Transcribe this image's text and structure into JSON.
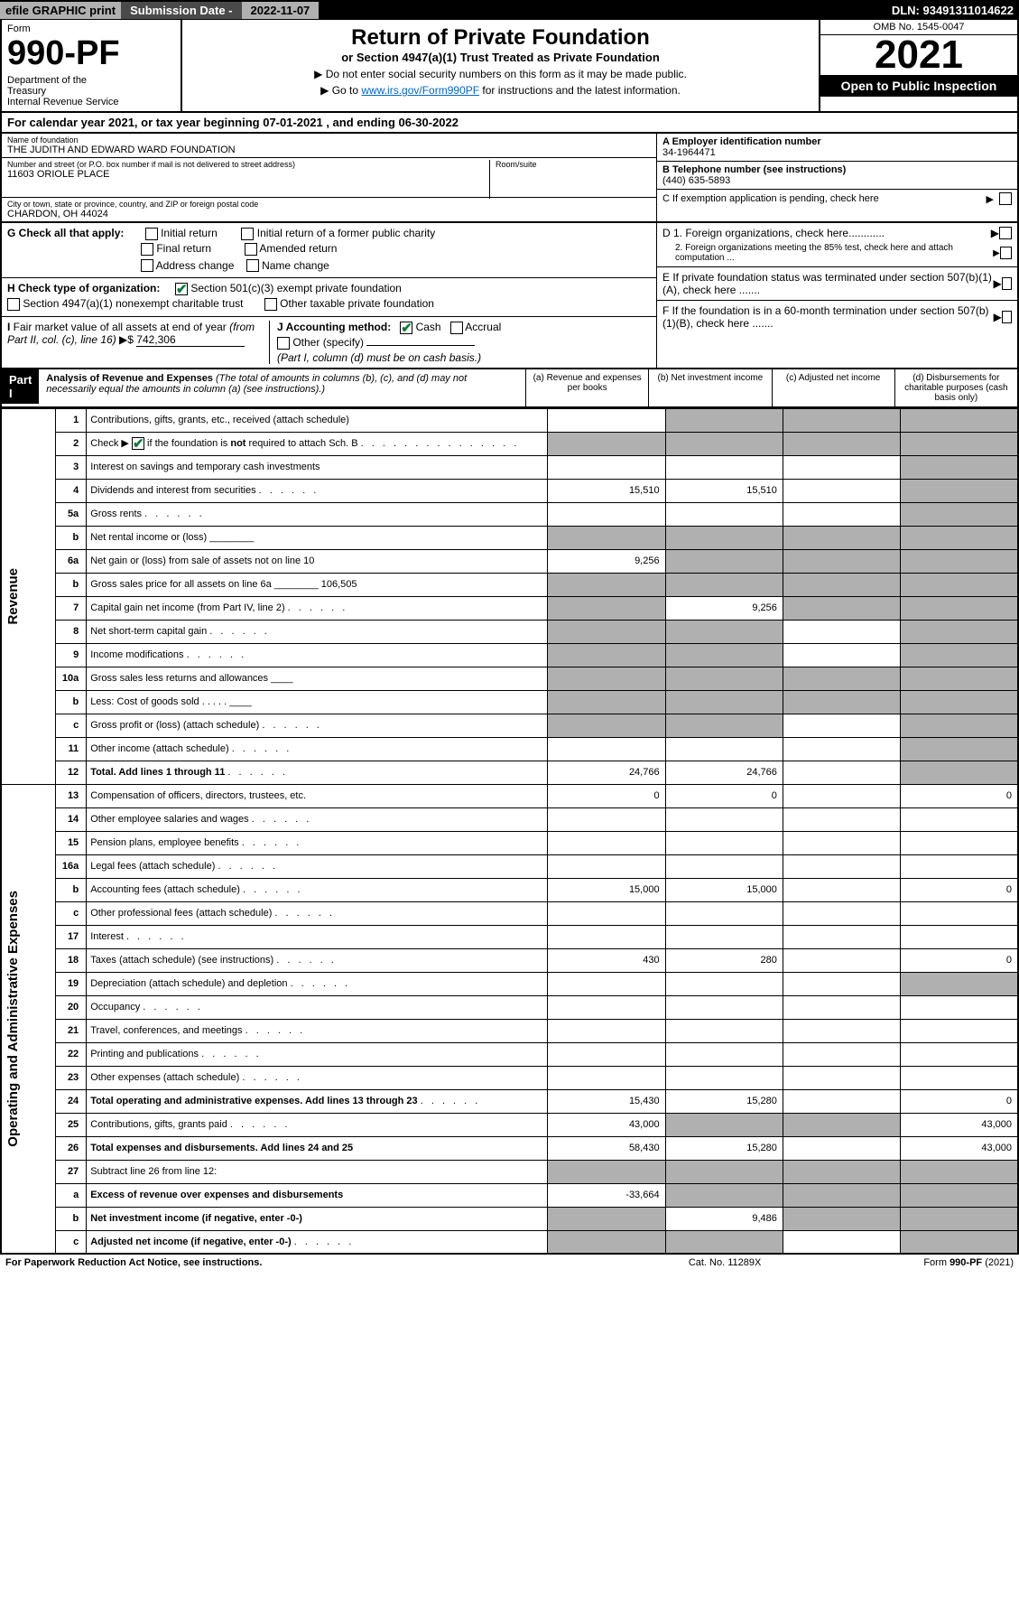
{
  "top": {
    "efile": "efile GRAPHIC print",
    "sub_label": "Submission Date - ",
    "sub_date": "2022-11-07",
    "dln": "DLN: 93491311014622"
  },
  "header": {
    "form_label": "Form",
    "form_no": "990-PF",
    "dept": "Department of the Treasury\nInternal Revenue Service",
    "title": "Return of Private Foundation",
    "sub1": "or Section 4947(a)(1) Trust Treated as Private Foundation",
    "sub2a": "▶ Do not enter social security numbers on this form as it may be made public.",
    "sub2b": "▶ Go to ",
    "link": "www.irs.gov/Form990PF",
    "sub2c": " for instructions and the latest information.",
    "omb": "OMB No. 1545-0047",
    "year": "2021",
    "open": "Open to Public Inspection"
  },
  "cal": "For calendar year 2021, or tax year beginning 07-01-2021          , and ending 06-30-2022",
  "info": {
    "name_label": "Name of foundation",
    "name": "THE JUDITH AND EDWARD WARD FOUNDATION",
    "addr_label": "Number and street (or P.O. box number if mail is not delivered to street address)",
    "addr": "11603 ORIOLE PLACE",
    "room_label": "Room/suite",
    "city_label": "City or town, state or province, country, and ZIP or foreign postal code",
    "city": "CHARDON, OH  44024",
    "a_label": "A Employer identification number",
    "a_val": "34-1964471",
    "b_label": "B Telephone number (see instructions)",
    "b_val": "(440) 635-5893",
    "c_label": "C If exemption application is pending, check here"
  },
  "checks": {
    "g_label": "G Check all that apply:",
    "g_opts": [
      "Initial return",
      "Initial return of a former public charity",
      "Final return",
      "Amended return",
      "Address change",
      "Name change"
    ],
    "h_label": "H Check type of organization:",
    "h_opt1": "Section 501(c)(3) exempt private foundation",
    "h_opt2": "Section 4947(a)(1) nonexempt charitable trust",
    "h_opt3": "Other taxable private foundation",
    "i_label": "I Fair market value of all assets at end of year (from Part II, col. (c), line 16) ▶$ ",
    "i_val": "742,306",
    "j_label": "J Accounting method:",
    "j_cash": "Cash",
    "j_accrual": "Accrual",
    "j_other": "Other (specify)",
    "j_note": "(Part I, column (d) must be on cash basis.)",
    "d1": "D 1. Foreign organizations, check here............",
    "d2": "2. Foreign organizations meeting the 85% test, check here and attach computation ...",
    "e": "E If private foundation status was terminated under section 507(b)(1)(A), check here .......",
    "f": "F  If the foundation is in a 60-month termination under section 507(b)(1)(B), check here ......."
  },
  "part1": {
    "header": "Part I",
    "title": "Analysis of Revenue and Expenses",
    "note": " (The total of amounts in columns (b), (c), and (d) may not necessarily equal the amounts in column (a) (see instructions).)",
    "col_a": "(a)   Revenue and expenses per books",
    "col_b": "(b)   Net investment income",
    "col_c": "(c)   Adjusted net income",
    "col_d": "(d)   Disbursements for charitable purposes (cash basis only)"
  },
  "sides": {
    "revenue": "Revenue",
    "expenses": "Operating and Administrative Expenses"
  },
  "rows": [
    {
      "n": "1",
      "d": "Contributions, gifts, grants, etc., received (attach schedule)",
      "a": "",
      "b": "shade",
      "c": "shade",
      "dd": "shade"
    },
    {
      "n": "2",
      "d": "Check ▶ ☑ if the foundation is not required to attach Sch. B",
      "a": "shade",
      "b": "shade",
      "c": "shade",
      "dd": "shade",
      "desc_dots": true
    },
    {
      "n": "3",
      "d": "Interest on savings and temporary cash investments",
      "a": "",
      "b": "",
      "c": "",
      "dd": "shade"
    },
    {
      "n": "4",
      "d": "Dividends and interest from securities",
      "a": "15,510",
      "b": "15,510",
      "c": "",
      "dd": "shade",
      "dots": true
    },
    {
      "n": "5a",
      "d": "Gross rents",
      "a": "",
      "b": "",
      "c": "",
      "dd": "shade",
      "dots": true
    },
    {
      "n": "b",
      "d": "Net rental income or (loss) ________",
      "a": "shade",
      "b": "shade",
      "c": "shade",
      "dd": "shade"
    },
    {
      "n": "6a",
      "d": "Net gain or (loss) from sale of assets not on line 10",
      "a": "9,256",
      "b": "shade",
      "c": "shade",
      "dd": "shade"
    },
    {
      "n": "b",
      "d": "Gross sales price for all assets on line 6a ________ 106,505",
      "a": "shade",
      "b": "shade",
      "c": "shade",
      "dd": "shade"
    },
    {
      "n": "7",
      "d": "Capital gain net income (from Part IV, line 2)",
      "a": "shade",
      "b": "9,256",
      "c": "shade",
      "dd": "shade",
      "dots": true
    },
    {
      "n": "8",
      "d": "Net short-term capital gain",
      "a": "shade",
      "b": "shade",
      "c": "",
      "dd": "shade",
      "dots": true
    },
    {
      "n": "9",
      "d": "Income modifications",
      "a": "shade",
      "b": "shade",
      "c": "",
      "dd": "shade",
      "dots": true
    },
    {
      "n": "10a",
      "d": "Gross sales less returns and allowances  ____",
      "a": "shade",
      "b": "shade",
      "c": "shade",
      "dd": "shade"
    },
    {
      "n": "b",
      "d": "Less: Cost of goods sold   . . . . .  ____",
      "a": "shade",
      "b": "shade",
      "c": "shade",
      "dd": "shade"
    },
    {
      "n": "c",
      "d": "Gross profit or (loss) (attach schedule)",
      "a": "shade",
      "b": "shade",
      "c": "",
      "dd": "shade",
      "dots": true
    },
    {
      "n": "11",
      "d": "Other income (attach schedule)",
      "a": "",
      "b": "",
      "c": "",
      "dd": "shade",
      "dots": true
    },
    {
      "n": "12",
      "d": "Total. Add lines 1 through 11",
      "a": "24,766",
      "b": "24,766",
      "c": "",
      "dd": "shade",
      "bold": true,
      "dots": true
    },
    {
      "n": "13",
      "d": "Compensation of officers, directors, trustees, etc.",
      "a": "0",
      "b": "0",
      "c": "",
      "dd": "0"
    },
    {
      "n": "14",
      "d": "Other employee salaries and wages",
      "a": "",
      "b": "",
      "c": "",
      "dd": "",
      "dots": true
    },
    {
      "n": "15",
      "d": "Pension plans, employee benefits",
      "a": "",
      "b": "",
      "c": "",
      "dd": "",
      "dots": true
    },
    {
      "n": "16a",
      "d": "Legal fees (attach schedule)",
      "a": "",
      "b": "",
      "c": "",
      "dd": "",
      "dots": true
    },
    {
      "n": "b",
      "d": "Accounting fees (attach schedule)",
      "a": "15,000",
      "b": "15,000",
      "c": "",
      "dd": "0",
      "dots": true
    },
    {
      "n": "c",
      "d": "Other professional fees (attach schedule)",
      "a": "",
      "b": "",
      "c": "",
      "dd": "",
      "dots": true
    },
    {
      "n": "17",
      "d": "Interest",
      "a": "",
      "b": "",
      "c": "",
      "dd": "",
      "dots": true
    },
    {
      "n": "18",
      "d": "Taxes (attach schedule) (see instructions)",
      "a": "430",
      "b": "280",
      "c": "",
      "dd": "0",
      "dots": true
    },
    {
      "n": "19",
      "d": "Depreciation (attach schedule) and depletion",
      "a": "",
      "b": "",
      "c": "",
      "dd": "shade",
      "dots": true
    },
    {
      "n": "20",
      "d": "Occupancy",
      "a": "",
      "b": "",
      "c": "",
      "dd": "",
      "dots": true
    },
    {
      "n": "21",
      "d": "Travel, conferences, and meetings",
      "a": "",
      "b": "",
      "c": "",
      "dd": "",
      "dots": true
    },
    {
      "n": "22",
      "d": "Printing and publications",
      "a": "",
      "b": "",
      "c": "",
      "dd": "",
      "dots": true
    },
    {
      "n": "23",
      "d": "Other expenses (attach schedule)",
      "a": "",
      "b": "",
      "c": "",
      "dd": "",
      "dots": true
    },
    {
      "n": "24",
      "d": "Total operating and administrative expenses. Add lines 13 through 23",
      "a": "15,430",
      "b": "15,280",
      "c": "",
      "dd": "0",
      "bold": true,
      "dots": true
    },
    {
      "n": "25",
      "d": "Contributions, gifts, grants paid",
      "a": "43,000",
      "b": "shade",
      "c": "shade",
      "dd": "43,000",
      "dots": true
    },
    {
      "n": "26",
      "d": "Total expenses and disbursements. Add lines 24 and 25",
      "a": "58,430",
      "b": "15,280",
      "c": "",
      "dd": "43,000",
      "bold": true
    },
    {
      "n": "27",
      "d": "Subtract line 26 from line 12:",
      "a": "shade",
      "b": "shade",
      "c": "shade",
      "dd": "shade"
    },
    {
      "n": "a",
      "d": "Excess of revenue over expenses and disbursements",
      "a": "-33,664",
      "b": "shade",
      "c": "shade",
      "dd": "shade",
      "bold": true
    },
    {
      "n": "b",
      "d": "Net investment income (if negative, enter -0-)",
      "a": "shade",
      "b": "9,486",
      "c": "shade",
      "dd": "shade",
      "bold": true
    },
    {
      "n": "c",
      "d": "Adjusted net income (if negative, enter -0-)",
      "a": "shade",
      "b": "shade",
      "c": "",
      "dd": "shade",
      "bold": true,
      "dots": true
    }
  ],
  "footer": {
    "left": "For Paperwork Reduction Act Notice, see instructions.",
    "mid": "Cat. No. 11289X",
    "right": "Form 990-PF (2021)"
  }
}
